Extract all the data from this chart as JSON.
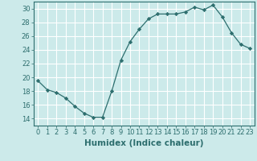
{
  "x": [
    0,
    1,
    2,
    3,
    4,
    5,
    6,
    7,
    8,
    9,
    10,
    11,
    12,
    13,
    14,
    15,
    16,
    17,
    18,
    19,
    20,
    21,
    22,
    23
  ],
  "y": [
    19.5,
    18.2,
    17.8,
    17.0,
    15.8,
    14.8,
    14.2,
    14.2,
    18.0,
    22.5,
    25.2,
    27.0,
    28.5,
    29.2,
    29.2,
    29.2,
    29.5,
    30.2,
    29.8,
    30.5,
    28.8,
    26.5,
    24.8,
    24.2
  ],
  "line_color": "#2d6e6e",
  "marker": "D",
  "marker_size": 2.2,
  "bg_color": "#cceaea",
  "grid_color": "#ffffff",
  "xlabel": "Humidex (Indice chaleur)",
  "xlim": [
    -0.5,
    23.5
  ],
  "ylim": [
    13,
    31
  ],
  "yticks": [
    14,
    16,
    18,
    20,
    22,
    24,
    26,
    28,
    30
  ],
  "xticks": [
    0,
    1,
    2,
    3,
    4,
    5,
    6,
    7,
    8,
    9,
    10,
    11,
    12,
    13,
    14,
    15,
    16,
    17,
    18,
    19,
    20,
    21,
    22,
    23
  ],
  "tick_color": "#2d6e6e",
  "axis_color": "#2d6e6e",
  "xlabel_fontsize": 7.5,
  "tick_fontsize": 6.0
}
